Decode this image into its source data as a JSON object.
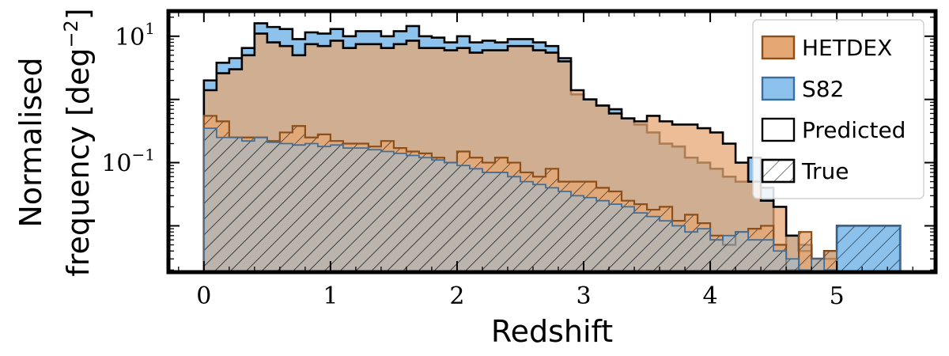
{
  "chart_data": {
    "type": "histogram",
    "xlabel": "Redshift",
    "ylabel_line1": "Normalised",
    "ylabel_line2": "frequency [deg",
    "ylabel_sup": "−2",
    "ylabel_close": "]",
    "yscale": "log",
    "xlim": [
      -0.28,
      5.78
    ],
    "ylim": [
      0.00185,
      25
    ],
    "x_ticks": [
      {
        "value": 0,
        "label": "0"
      },
      {
        "value": 1,
        "label": "1"
      },
      {
        "value": 2,
        "label": "2"
      },
      {
        "value": 3,
        "label": "3"
      },
      {
        "value": 4,
        "label": "4"
      },
      {
        "value": 5,
        "label": "5"
      }
    ],
    "y_ticks": [
      {
        "value": 10,
        "base": "10",
        "exp": "1"
      },
      {
        "value": 0.1,
        "base": "10",
        "exp": "−1"
      }
    ],
    "legend": {
      "position": "upper right",
      "entries": [
        {
          "label": "HETDEX",
          "style": "hetdex"
        },
        {
          "label": "S82",
          "style": "s82"
        },
        {
          "label": "Predicted",
          "style": "predicted"
        },
        {
          "label": "True",
          "style": "true"
        }
      ]
    },
    "colors": {
      "hetdex_fill": "#e5a773",
      "hetdex_edge": "#8b4f1c",
      "s82_fill": "#8cc2ec",
      "s82_edge": "#3d6f9e",
      "hatch": "#000000"
    },
    "bin_edges": [
      0,
      0.1,
      0.2,
      0.3,
      0.4,
      0.5,
      0.6,
      0.7,
      0.8,
      0.9,
      1.0,
      1.1,
      1.2,
      1.3,
      1.4,
      1.5,
      1.6,
      1.7,
      1.8,
      1.9,
      2.0,
      2.1,
      2.2,
      2.3,
      2.4,
      2.5,
      2.6,
      2.7,
      2.8,
      2.9,
      3.0,
      3.1,
      3.2,
      3.3,
      3.4,
      3.5,
      3.6,
      3.7,
      3.8,
      3.9,
      4.0,
      4.1,
      4.2,
      4.3,
      4.4,
      4.5,
      4.6,
      4.7,
      4.8,
      4.9,
      5.0,
      5.5
    ],
    "series": [
      {
        "name": "S82 Predicted",
        "values": [
          2.0,
          3.8,
          4.5,
          6.5,
          16.0,
          14.0,
          13.0,
          9.0,
          11.5,
          11.0,
          13.0,
          10.0,
          12.0,
          12.0,
          10.0,
          12.0,
          14.5,
          10.0,
          9.5,
          8.0,
          10.0,
          8.0,
          8.5,
          8.0,
          9.0,
          9.0,
          8.0,
          7.0,
          4.5,
          1.2,
          1.0,
          0.8,
          0.7,
          0.5,
          0.4,
          0.3,
          0.2,
          0.18,
          0.12,
          0.1,
          0.08,
          0.06,
          0.05,
          0.12,
          0.04,
          0.005,
          0.007,
          0.005,
          0.003,
          0.004,
          0.01
        ]
      },
      {
        "name": "HETDEX Predicted",
        "values": [
          1.4,
          2.6,
          3.0,
          5.0,
          11.0,
          8.0,
          7.0,
          5.0,
          7.5,
          7.0,
          8.5,
          6.5,
          7.5,
          7.5,
          6.5,
          7.5,
          8.5,
          6.5,
          6.5,
          6.0,
          6.5,
          5.5,
          6.0,
          6.0,
          7.0,
          7.0,
          6.0,
          5.5,
          4.0,
          1.4,
          1.0,
          0.8,
          0.6,
          0.5,
          0.45,
          0.55,
          0.45,
          0.4,
          0.4,
          0.35,
          0.3,
          0.2,
          0.1,
          0.05,
          0.025,
          0.02,
          0.007,
          0.004,
          0.003,
          0.003,
          0.0
        ]
      },
      {
        "name": "HETDEX True",
        "values": [
          0.55,
          0.45,
          0.25,
          0.25,
          0.25,
          0.22,
          0.3,
          0.38,
          0.25,
          0.28,
          0.22,
          0.2,
          0.2,
          0.18,
          0.22,
          0.17,
          0.15,
          0.14,
          0.12,
          0.1,
          0.15,
          0.12,
          0.1,
          0.12,
          0.1,
          0.07,
          0.06,
          0.08,
          0.05,
          0.05,
          0.05,
          0.04,
          0.035,
          0.025,
          0.022,
          0.018,
          0.02,
          0.012,
          0.015,
          0.011,
          0.007,
          0.005,
          0.008,
          0.009,
          0.01,
          0.005,
          0.002,
          0.008,
          0.003,
          0.004,
          0.0
        ]
      },
      {
        "name": "S82 True",
        "values": [
          0.35,
          0.25,
          0.25,
          0.22,
          0.25,
          0.21,
          0.2,
          0.19,
          0.2,
          0.18,
          0.19,
          0.17,
          0.17,
          0.16,
          0.15,
          0.14,
          0.13,
          0.12,
          0.11,
          0.1,
          0.09,
          0.08,
          0.07,
          0.07,
          0.06,
          0.05,
          0.045,
          0.04,
          0.035,
          0.03,
          0.028,
          0.025,
          0.022,
          0.02,
          0.016,
          0.014,
          0.012,
          0.01,
          0.008,
          0.009,
          0.006,
          0.007,
          0.008,
          0.006,
          0.006,
          0.004,
          0.003,
          0.002,
          0.003,
          0.002,
          0.01
        ]
      }
    ]
  }
}
